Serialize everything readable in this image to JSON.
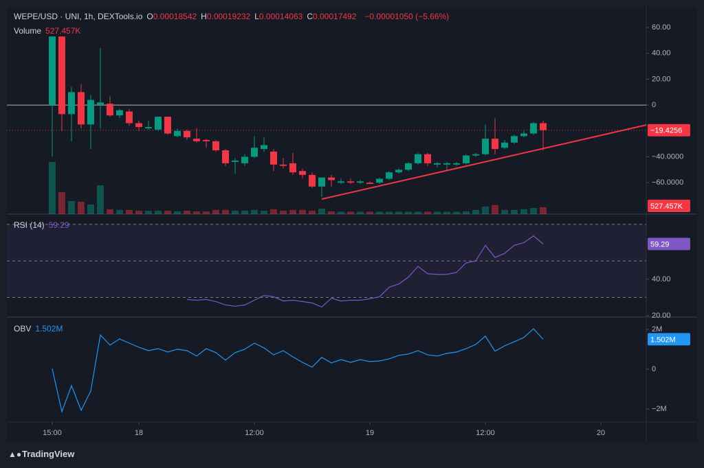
{
  "header": {
    "symbol": "WEPE/USD · UNI, 1h, DEXTools.io",
    "ohlc": [
      {
        "key": "O",
        "value": "0.00018542"
      },
      {
        "key": "H",
        "value": "0.00019232"
      },
      {
        "key": "L",
        "value": "0.00014063"
      },
      {
        "key": "C",
        "value": "0.00017492"
      }
    ],
    "change": "−0.00001050 (−5.66%)",
    "volume_label": "Volume",
    "volume_value": "527.457K"
  },
  "chart_data": [
    {
      "type": "candlestick",
      "up_color": "#089981",
      "down_color": "#f23645",
      "x": [
        0,
        1,
        2,
        3,
        4,
        5,
        6,
        7,
        8,
        9,
        10,
        11,
        12,
        13,
        14,
        15,
        16,
        17,
        18,
        19,
        20,
        21,
        22,
        23,
        24,
        25,
        26,
        27,
        28,
        29,
        30,
        31,
        32,
        33,
        34,
        35,
        36,
        37,
        38,
        39,
        40,
        41,
        42,
        43,
        44,
        45,
        46,
        47,
        48,
        49,
        50,
        51
      ],
      "xlim": [
        -4.71,
        61.71
      ],
      "xticks": [
        {
          "value": 0,
          "label": "15:00"
        },
        {
          "value": 9,
          "label": "18"
        },
        {
          "value": 21,
          "label": "12:00"
        },
        {
          "value": 33,
          "label": "19"
        },
        {
          "value": 45,
          "label": "12:00"
        },
        {
          "value": 57,
          "label": "20"
        }
      ],
      "open": [
        0,
        53,
        -7,
        10,
        -15,
        0,
        1,
        -8,
        -5,
        -14,
        -18,
        -19,
        -9,
        -24,
        -20,
        -26,
        -27,
        -28,
        -35,
        -44,
        -45,
        -40,
        -34,
        -36,
        -46,
        -45,
        -51,
        -54,
        -63,
        -56,
        -60,
        -59,
        -60,
        -60,
        -60,
        -57,
        -52,
        -50,
        -45,
        -38,
        -46,
        -46,
        -46,
        -45,
        -39,
        -38,
        -26,
        -33,
        -29,
        -24,
        -22,
        -14
      ],
      "high": [
        53,
        53,
        14,
        16,
        8,
        44,
        7,
        -3,
        -3,
        -12,
        -12,
        -9,
        -9,
        -18,
        -19,
        -18,
        -26,
        -27,
        -34,
        -41,
        -38,
        -24,
        -25,
        -34,
        -41,
        -37,
        -49,
        -52,
        -56,
        -54,
        -57,
        -57,
        -58,
        -59,
        -56,
        -51,
        -49,
        -44,
        -37,
        -37,
        -44,
        -44,
        -44,
        -38,
        -37,
        -15,
        -10,
        -27,
        -23,
        -20,
        -13,
        -12
      ],
      "low": [
        -40,
        -20,
        -28,
        -18,
        -34,
        -18,
        -9,
        -10,
        -16,
        -20,
        -19,
        -20,
        -23,
        -25,
        -27,
        -29,
        -33,
        -36,
        -47,
        -53,
        -47,
        -41,
        -36,
        -51,
        -49,
        -54,
        -57,
        -64,
        -71,
        -63,
        -61,
        -61,
        -61,
        -61,
        -61,
        -58,
        -53,
        -51,
        -46,
        -47,
        -48,
        -51,
        -47,
        -46,
        -40,
        -39,
        -38,
        -34,
        -30,
        -25,
        -23,
        -35
      ],
      "close": [
        53,
        -7,
        10,
        -15,
        4,
        2,
        -8,
        -4,
        -14,
        -17,
        -17,
        -9,
        -22,
        -20,
        -25,
        -28,
        -28,
        -35,
        -45,
        -43,
        -40,
        -33,
        -31,
        -46,
        -47,
        -52,
        -54,
        -63,
        -56,
        -58,
        -59,
        -60,
        -59,
        -61,
        -57,
        -52,
        -50,
        -45,
        -38,
        -45,
        -45,
        -45,
        -45,
        -39,
        -38,
        -26,
        -34,
        -29,
        -24,
        -22,
        -14,
        -19.4256
      ],
      "volume": [
        4000000,
        1690000,
        1000000,
        950000,
        740000,
        2210000,
        370000,
        320000,
        320000,
        260000,
        260000,
        260000,
        260000,
        210000,
        260000,
        210000,
        210000,
        320000,
        320000,
        260000,
        260000,
        320000,
        260000,
        370000,
        260000,
        320000,
        320000,
        260000,
        420000,
        210000,
        180000,
        180000,
        180000,
        180000,
        180000,
        180000,
        180000,
        180000,
        180000,
        180000,
        180000,
        180000,
        180000,
        210000,
        320000,
        580000,
        690000,
        320000,
        320000,
        370000,
        470000,
        527457
      ],
      "last_volume": {
        "value": 527457,
        "label": "527.457K"
      },
      "last_price": {
        "value": -19.4256,
        "label": "−19.4256"
      },
      "baseline": 0,
      "ylim": [
        -84.3,
        75.9
      ],
      "yticks": [
        {
          "value": 60,
          "label": "60.00"
        },
        {
          "value": 40,
          "label": "40.00"
        },
        {
          "value": 20,
          "label": "20.00"
        },
        0,
        {
          "value": -40,
          "label": "−40.0000"
        },
        {
          "value": -60,
          "label": "−60.0000"
        }
      ],
      "trendline": {
        "x": [
          28,
          61.71
        ],
        "values": [
          -72.7,
          -15.4
        ],
        "color": "#f23645"
      }
    },
    {
      "type": "line",
      "title": "RSI (14)",
      "ylim": [
        19.3,
        75.6
      ],
      "yticks": [
        {
          "value": 40,
          "label": "40.00"
        },
        {
          "value": 20,
          "label": "20.00"
        }
      ],
      "bands": [
        70,
        50,
        30
      ],
      "series": [
        {
          "name": "RSI",
          "color": "#7e57c2",
          "x": [
            14,
            15,
            16,
            17,
            18,
            19,
            20,
            21,
            22,
            23,
            24,
            25,
            26,
            27,
            28,
            29,
            30,
            31,
            32,
            33,
            34,
            35,
            36,
            37,
            38,
            39,
            40,
            41,
            42,
            43,
            44,
            45,
            46,
            47,
            48,
            49,
            50,
            51
          ],
          "values": [
            28.9,
            28.5,
            28.9,
            27.8,
            25.9,
            25.2,
            25.9,
            28.5,
            31.1,
            30.4,
            28.1,
            28.5,
            27.8,
            27.0,
            24.8,
            29.6,
            28.1,
            28.5,
            28.5,
            29.3,
            30.4,
            35.6,
            37.4,
            41.1,
            47.0,
            43.0,
            42.6,
            42.6,
            43.7,
            48.9,
            50.0,
            58.5,
            51.9,
            54.1,
            58.5,
            60.0,
            63.7,
            59.29
          ]
        }
      ]
    },
    {
      "type": "line",
      "title": "OBV",
      "ylim": [
        -2660000,
        2620000
      ],
      "yticks": [
        {
          "value": 2000000,
          "label": "2M"
        },
        0,
        {
          "value": -2000000,
          "label": "−2M"
        }
      ],
      "last_value": {
        "value": 1502000,
        "label": "1.502M"
      },
      "series": [
        {
          "name": "OBV",
          "color": "#2196f3",
          "x": [
            0,
            1,
            2,
            3,
            4,
            5,
            6,
            7,
            8,
            9,
            10,
            11,
            12,
            13,
            14,
            15,
            16,
            17,
            18,
            19,
            20,
            21,
            22,
            23,
            24,
            25,
            26,
            27,
            28,
            29,
            30,
            31,
            32,
            33,
            34,
            35,
            36,
            37,
            38,
            39,
            40,
            41,
            42,
            43,
            44,
            45,
            46,
            47,
            48,
            49,
            50,
            51
          ],
          "values": [
            30000,
            -2140000,
            -830000,
            -2070000,
            -1100000,
            1720000,
            1210000,
            1520000,
            1310000,
            1100000,
            930000,
            1030000,
            860000,
            1000000,
            930000,
            660000,
            1030000,
            830000,
            450000,
            830000,
            1000000,
            1310000,
            1070000,
            720000,
            930000,
            620000,
            340000,
            100000,
            590000,
            310000,
            480000,
            340000,
            480000,
            380000,
            410000,
            520000,
            690000,
            760000,
            930000,
            720000,
            660000,
            790000,
            860000,
            1030000,
            1240000,
            1660000,
            900000,
            1170000,
            1380000,
            1590000,
            2030000,
            1502000
          ]
        }
      ]
    }
  ],
  "footer": {
    "brand": "TradingView"
  }
}
